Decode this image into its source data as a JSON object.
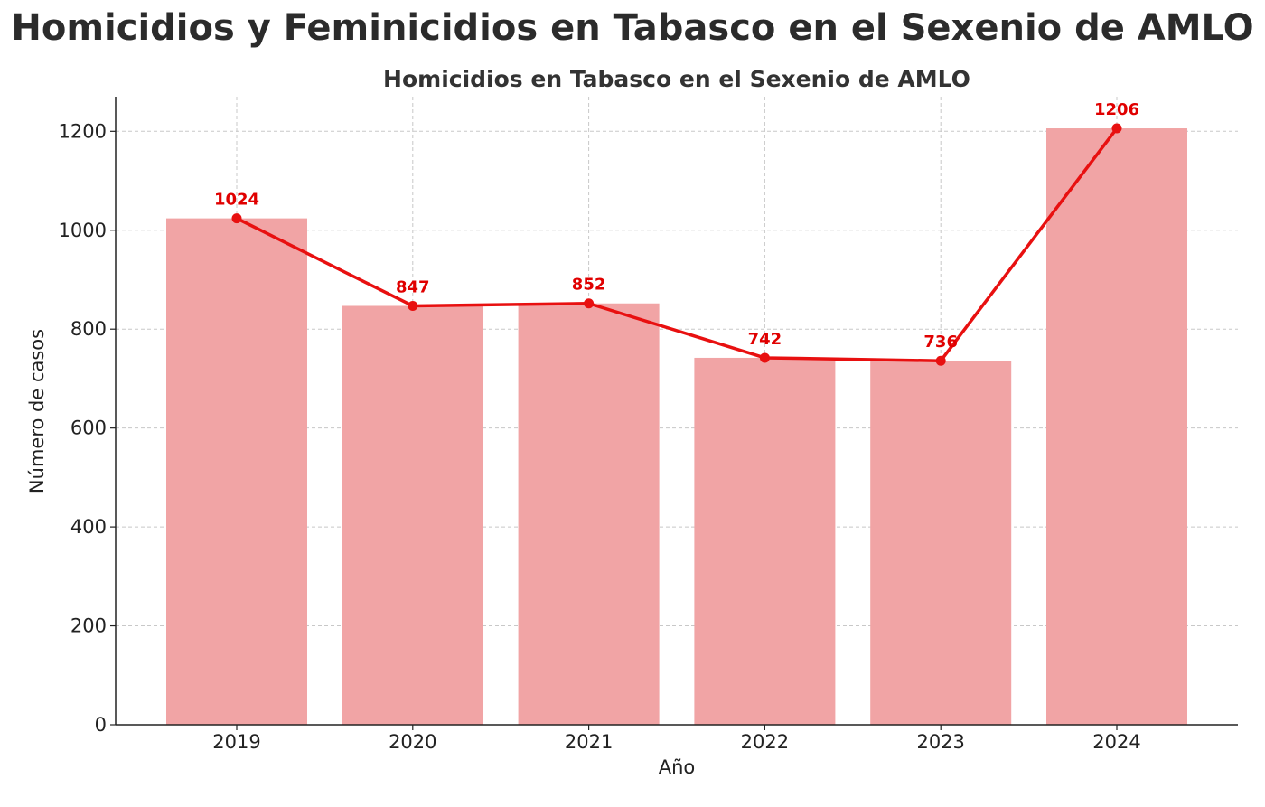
{
  "figure_title": "Homicidios y Feminicidios en Tabasco en el Sexenio de AMLO",
  "colors": {
    "bar": "#f1a4a5",
    "line": "#e81010",
    "label": "#e00000",
    "grid": "#c8c8c8",
    "axis": "#222222"
  },
  "chart_data": {
    "type": "bar",
    "title": "Homicidios en Tabasco en el Sexenio de AMLO",
    "xlabel": "Año",
    "ylabel": "Número de casos",
    "categories": [
      "2019",
      "2020",
      "2021",
      "2022",
      "2023",
      "2024"
    ],
    "values": [
      1024,
      847,
      852,
      742,
      736,
      1206
    ],
    "data_labels": [
      "1024",
      "847",
      "852",
      "742",
      "736",
      "1206"
    ],
    "overlay_line": {
      "type": "line",
      "markers": true,
      "values": [
        1024,
        847,
        852,
        742,
        736,
        1206
      ]
    },
    "ylim": [
      0,
      1270
    ],
    "yticks": [
      0,
      200,
      400,
      600,
      800,
      1000,
      1200
    ],
    "grid": true,
    "legend": false
  }
}
